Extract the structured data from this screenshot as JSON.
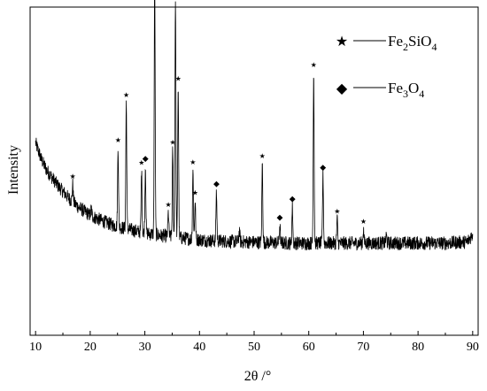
{
  "chart_data": {
    "type": "line",
    "title": "",
    "xlabel": "2θ /°",
    "ylabel": "Intensity",
    "xlim": [
      9,
      91
    ],
    "x_ticks": [
      "10",
      "20",
      "30",
      "40",
      "50",
      "60",
      "70",
      "80",
      "90"
    ],
    "y_ticks": false,
    "grid": false,
    "legend_position": "top-right",
    "legend": [
      {
        "symbol": "★",
        "label_main": "Fe",
        "sub1": "2",
        "mid": "SiO",
        "sub2": "4"
      },
      {
        "symbol": "◆",
        "label_main": "Fe",
        "sub1": "3",
        "mid": "O",
        "sub2": "4"
      }
    ],
    "background": {
      "x": [
        10,
        11,
        12,
        13,
        14,
        15,
        16,
        17,
        18,
        19,
        20,
        22,
        24,
        26,
        28,
        30,
        33,
        36,
        39,
        42,
        45,
        48,
        52,
        56,
        60,
        65,
        70,
        75,
        80,
        85,
        89,
        90
      ],
      "y": [
        305,
        280,
        262,
        250,
        238,
        228,
        218,
        210,
        202,
        196,
        190,
        182,
        175,
        170,
        166,
        162,
        158,
        155,
        152,
        150,
        149,
        148,
        147,
        146,
        146,
        146,
        146,
        146,
        146,
        146,
        148,
        160
      ]
    },
    "peaks": [
      {
        "x": 16.8,
        "height": 28,
        "phase": "Fe2SiO4"
      },
      {
        "x": 20.2,
        "height": 12,
        "phase": "Fe2SiO4"
      },
      {
        "x": 25.1,
        "height": 125,
        "phase": "Fe2SiO4"
      },
      {
        "x": 26.6,
        "height": 200,
        "phase": "Fe2SiO4"
      },
      {
        "x": 29.4,
        "height": 98,
        "phase": "Fe2SiO4"
      },
      {
        "x": 30.1,
        "height": 106,
        "phase": "Fe3O4"
      },
      {
        "x": 31.8,
        "height": 410,
        "phase": "Fe2SiO4"
      },
      {
        "x": 34.3,
        "height": 38,
        "phase": "Fe2SiO4"
      },
      {
        "x": 35.1,
        "height": 138,
        "phase": "Fe2SiO4"
      },
      {
        "x": 35.6,
        "height": 380,
        "phase": "Fe3O4"
      },
      {
        "x": 36.1,
        "height": 240,
        "phase": "Fe2SiO4"
      },
      {
        "x": 38.8,
        "height": 110,
        "phase": "Fe2SiO4"
      },
      {
        "x": 39.2,
        "height": 62,
        "phase": "Fe2SiO4"
      },
      {
        "x": 43.1,
        "height": 78,
        "phase": "Fe3O4"
      },
      {
        "x": 47.3,
        "height": 18,
        "phase": "Fe2SiO4"
      },
      {
        "x": 51.5,
        "height": 125,
        "phase": "Fe2SiO4"
      },
      {
        "x": 54.7,
        "height": 28,
        "phase": "Fe3O4"
      },
      {
        "x": 57.0,
        "height": 58,
        "phase": "Fe3O4"
      },
      {
        "x": 60.9,
        "height": 270,
        "phase": "Fe2SiO4"
      },
      {
        "x": 62.6,
        "height": 108,
        "phase": "Fe3O4"
      },
      {
        "x": 65.2,
        "height": 38,
        "phase": "Fe2SiO4"
      },
      {
        "x": 70.0,
        "height": 22,
        "phase": "Fe2SiO4"
      },
      {
        "x": 74.2,
        "height": 12,
        "phase": "Fe3O4"
      }
    ],
    "markers": [
      {
        "x": 16.8,
        "symbol": "★"
      },
      {
        "x": 25.1,
        "symbol": "★"
      },
      {
        "x": 26.6,
        "symbol": "★"
      },
      {
        "x": 29.4,
        "symbol": "★"
      },
      {
        "x": 30.1,
        "symbol": "◆"
      },
      {
        "x": 31.8,
        "symbol": "★"
      },
      {
        "x": 34.3,
        "symbol": "★"
      },
      {
        "x": 35.1,
        "symbol": "★"
      },
      {
        "x": 35.6,
        "symbol": "◆"
      },
      {
        "x": 36.1,
        "symbol": "★"
      },
      {
        "x": 38.8,
        "symbol": "★"
      },
      {
        "x": 39.2,
        "symbol": "★"
      },
      {
        "x": 43.1,
        "symbol": "◆"
      },
      {
        "x": 51.5,
        "symbol": "★"
      },
      {
        "x": 54.7,
        "symbol": "◆"
      },
      {
        "x": 57.0,
        "symbol": "◆"
      },
      {
        "x": 60.9,
        "symbol": "★"
      },
      {
        "x": 62.6,
        "symbol": "◆"
      },
      {
        "x": 65.2,
        "symbol": "★"
      },
      {
        "x": 70.0,
        "symbol": "★"
      }
    ]
  }
}
